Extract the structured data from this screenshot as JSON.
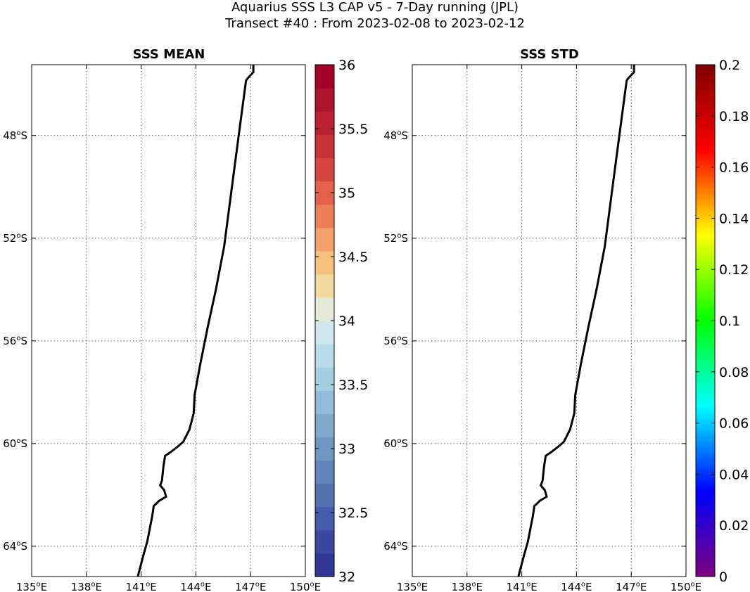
{
  "figure": {
    "title_line1": "Aquarius SSS L3 CAP v5 - 7-Day running (JPL)",
    "title_line2": "Transect #40 : From 2023-02-08 to 2023-02-12"
  },
  "axes": {
    "x_ticks": [
      135,
      138,
      141,
      144,
      147,
      150
    ],
    "x_tick_labels": [
      "135°E",
      "138°E",
      "141°E",
      "144°E",
      "147°E",
      "150°E"
    ],
    "y_ticks": [
      -48,
      -52,
      -56,
      -60,
      -64
    ],
    "y_tick_labels": [
      "48°S",
      "52°S",
      "56°S",
      "60°S",
      "64°S"
    ],
    "lon_range": [
      135,
      150
    ],
    "lat_range": [
      -65.18,
      -45.24
    ]
  },
  "panels": [
    {
      "title": "SSS MEAN",
      "colorbar": {
        "min": 32,
        "max": 36,
        "levels": 22,
        "ticks": [
          32,
          32.5,
          33,
          33.5,
          34,
          34.5,
          35,
          35.5,
          36
        ],
        "tick_labels": [
          "32",
          "32.5",
          "33",
          "33.5",
          "34",
          "34.5",
          "35",
          "35.5",
          "36"
        ],
        "colors": [
          "#313695",
          "#3a499f",
          "#445ca9",
          "#5471b0",
          "#6184ba",
          "#6f97c4",
          "#7eaacd",
          "#8fbcd8",
          "#a3cfe2",
          "#b8dcea",
          "#cfe7ee",
          "#e4ead8",
          "#f2dba0",
          "#f6c07f",
          "#f3a06b",
          "#ec7e58",
          "#e3604a",
          "#d6473f",
          "#c93236",
          "#bb2131",
          "#ad132c",
          "#a50026"
        ]
      }
    },
    {
      "title": "SSS STD",
      "colorbar": {
        "min": 0,
        "max": 0.2,
        "colormap": "jet",
        "ticks": [
          0,
          0.02,
          0.04,
          0.06,
          0.08,
          0.1,
          0.12,
          0.14,
          0.16,
          0.18,
          0.2
        ],
        "tick_labels": [
          "0",
          "0.02",
          "0.04",
          "0.06",
          "0.08",
          "0.1",
          "0.12",
          "0.14",
          "0.16",
          "0.18",
          "0.2"
        ],
        "gradient_stops": [
          "#800080",
          "#0000ff",
          "#00ffff",
          "#00ff00",
          "#ffff00",
          "#ff0000",
          "#800000"
        ]
      }
    }
  ],
  "transect": {
    "color": "#000000",
    "points": [
      [
        147.15,
        -45.24
      ],
      [
        147.15,
        -45.53
      ],
      [
        146.85,
        -45.76
      ],
      [
        146.75,
        -45.86
      ],
      [
        146.44,
        -47.5
      ],
      [
        145.98,
        -49.99
      ],
      [
        145.55,
        -52.32
      ],
      [
        145.09,
        -54.02
      ],
      [
        144.66,
        -55.43
      ],
      [
        144.24,
        -56.91
      ],
      [
        143.93,
        -58.11
      ],
      [
        143.88,
        -58.82
      ],
      [
        143.65,
        -59.45
      ],
      [
        143.31,
        -59.93
      ],
      [
        143.04,
        -60.1
      ],
      [
        142.64,
        -60.32
      ],
      [
        142.31,
        -60.48
      ],
      [
        142.22,
        -60.91
      ],
      [
        142.14,
        -61.44
      ],
      [
        142.04,
        -61.63
      ],
      [
        142.26,
        -61.81
      ],
      [
        142.37,
        -62.07
      ],
      [
        141.98,
        -62.23
      ],
      [
        141.88,
        -62.31
      ],
      [
        141.69,
        -62.43
      ],
      [
        141.61,
        -62.82
      ],
      [
        141.33,
        -63.83
      ],
      [
        141.11,
        -64.38
      ],
      [
        140.95,
        -64.82
      ],
      [
        140.82,
        -65.18
      ]
    ]
  }
}
